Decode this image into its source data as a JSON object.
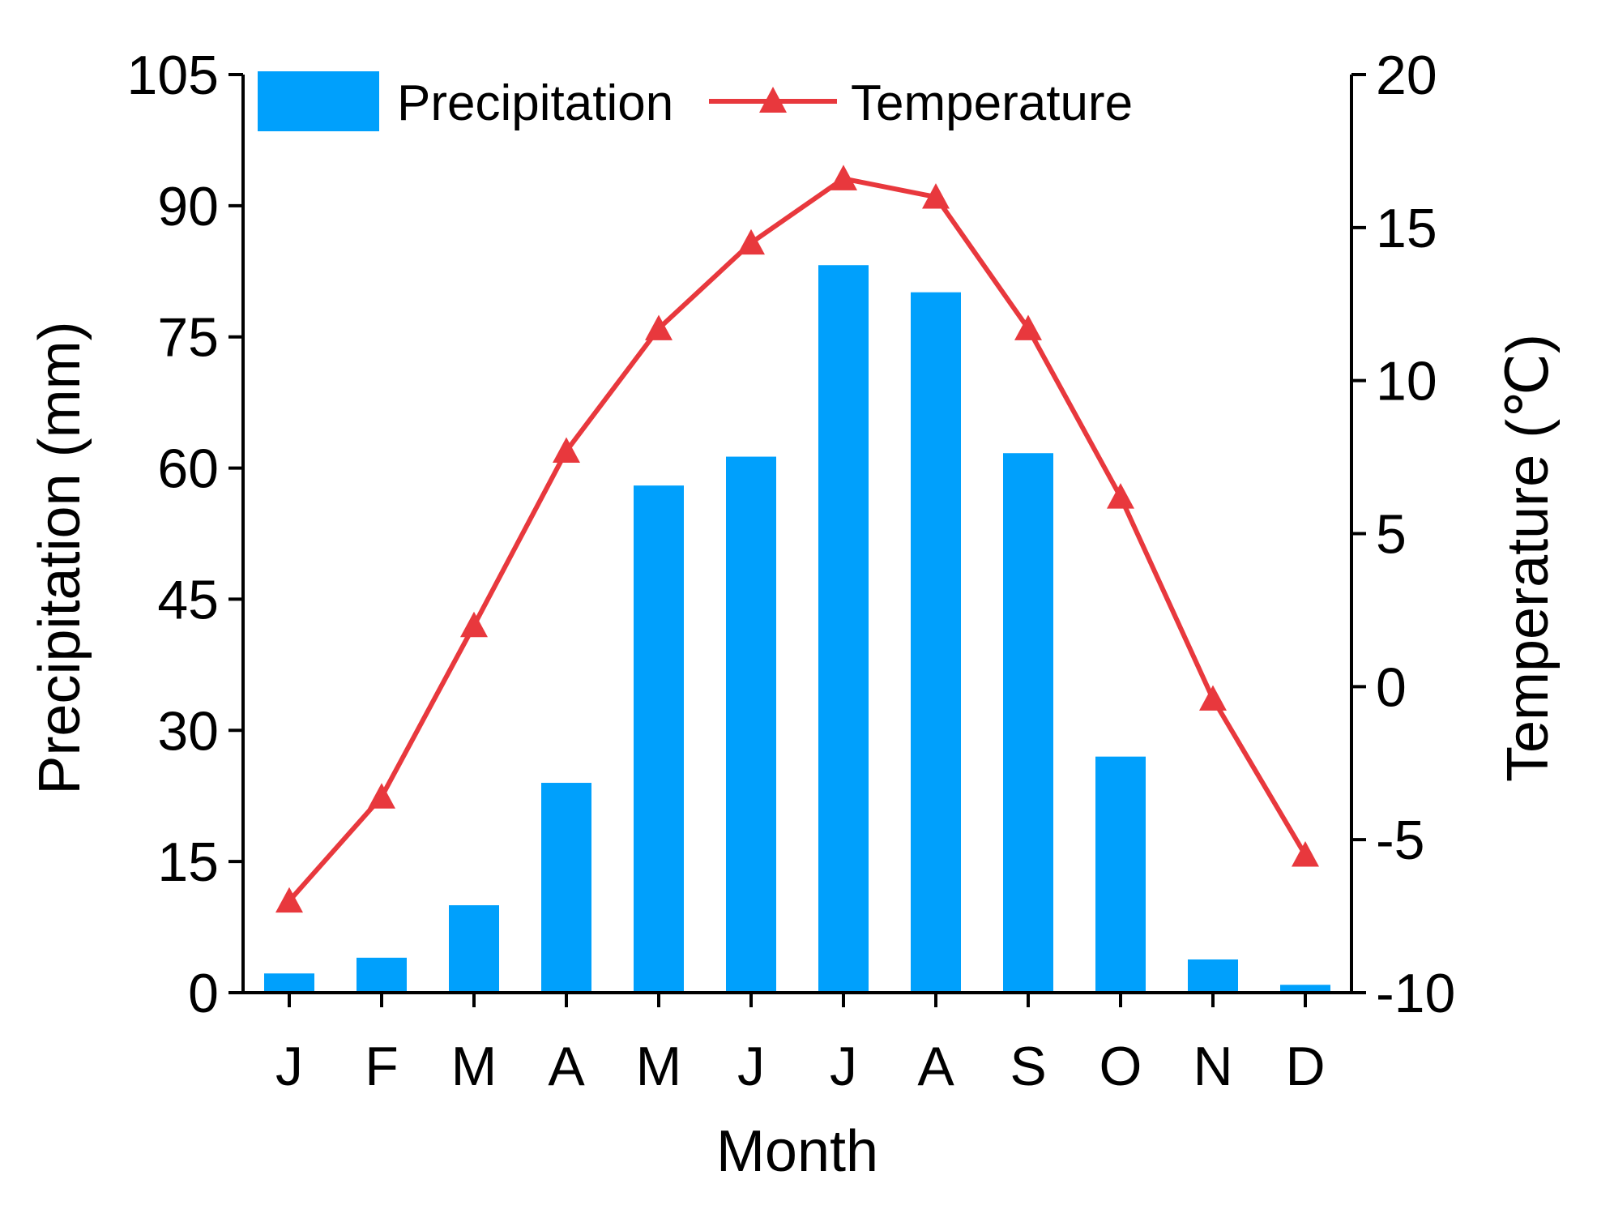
{
  "chart_data": {
    "type": "bar+line",
    "categories": [
      "J",
      "F",
      "M",
      "A",
      "M",
      "J",
      "J",
      "A",
      "S",
      "O",
      "N",
      "D"
    ],
    "series": [
      {
        "name": "Precipitation",
        "type": "bar",
        "axis": "left",
        "color": "#00A0FC",
        "values": [
          2.2,
          4.0,
          10.0,
          24.0,
          58.0,
          61.3,
          83.2,
          80.1,
          61.7,
          27.0,
          3.8,
          0.9
        ]
      },
      {
        "name": "Temperature",
        "type": "line",
        "axis": "right",
        "marker": "triangle",
        "color": "#E8383D",
        "values": [
          -7.0,
          -3.6,
          2.0,
          7.7,
          11.7,
          14.5,
          16.6,
          16.0,
          11.7,
          6.2,
          -0.4,
          -5.5
        ]
      }
    ],
    "xlabel": "Month",
    "ylabel": "Precipitation (mm)",
    "y2label": "Temperature (℃)",
    "ylim": [
      0,
      105
    ],
    "y2lim": [
      -10,
      20
    ],
    "yticks": [
      "0",
      "15",
      "30",
      "45",
      "60",
      "75",
      "90",
      "105"
    ],
    "y2ticks": [
      "-10",
      "-5",
      "0",
      "5",
      "10",
      "15",
      "20"
    ],
    "legend": {
      "position": "top-left",
      "entries": [
        "Precipitation",
        "Temperature"
      ]
    },
    "grid": false
  }
}
